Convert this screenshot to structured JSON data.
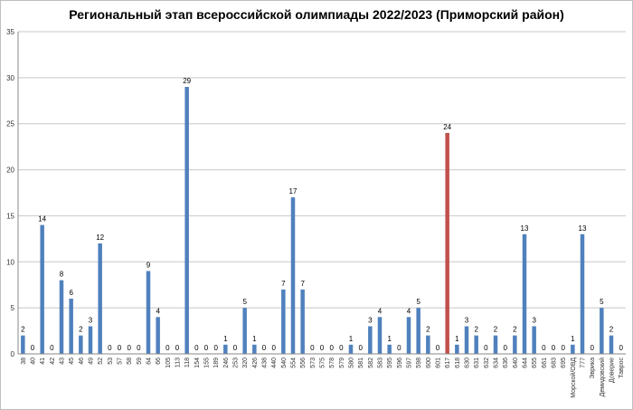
{
  "chart_data": {
    "type": "bar",
    "title": "Региональный этап всероссийской олимпиады 2022/2023 (Приморский район)",
    "xlabel": "",
    "ylabel": "",
    "ylim": [
      0,
      35
    ],
    "yticks": [
      0,
      5,
      10,
      15,
      20,
      25,
      30,
      35
    ],
    "grid": true,
    "legend": "none",
    "colors": {
      "default": "#4f81bd",
      "highlight": "#c0504d",
      "grid": "#c8c8c8"
    },
    "highlight_category": "617",
    "categories": [
      "38",
      "40",
      "41",
      "42",
      "43",
      "45",
      "46",
      "49",
      "52",
      "53",
      "57",
      "58",
      "59",
      "64",
      "66",
      "105",
      "113",
      "118",
      "154",
      "155",
      "189",
      "246",
      "253",
      "320",
      "426",
      "438",
      "440",
      "540",
      "554",
      "556",
      "573",
      "575",
      "578",
      "579",
      "580",
      "581",
      "582",
      "583",
      "595",
      "596",
      "597",
      "598",
      "600",
      "601",
      "617",
      "618",
      "630",
      "631",
      "632",
      "634",
      "636",
      "640",
      "644",
      "655",
      "661",
      "683",
      "695",
      "Морской/ОВД",
      "777",
      "Эврика",
      "Демидовский",
      "Доверие",
      "Таврос"
    ],
    "values": [
      2,
      0,
      14,
      0,
      8,
      6,
      2,
      3,
      12,
      0,
      0,
      0,
      0,
      9,
      4,
      0,
      0,
      29,
      0,
      0,
      0,
      1,
      0,
      5,
      1,
      0,
      0,
      7,
      17,
      7,
      0,
      0,
      0,
      0,
      1,
      0,
      3,
      4,
      1,
      0,
      4,
      5,
      2,
      0,
      24,
      1,
      3,
      2,
      0,
      2,
      0,
      2,
      13,
      3,
      0,
      0,
      0,
      1,
      13,
      0,
      5,
      2,
      0
    ]
  }
}
